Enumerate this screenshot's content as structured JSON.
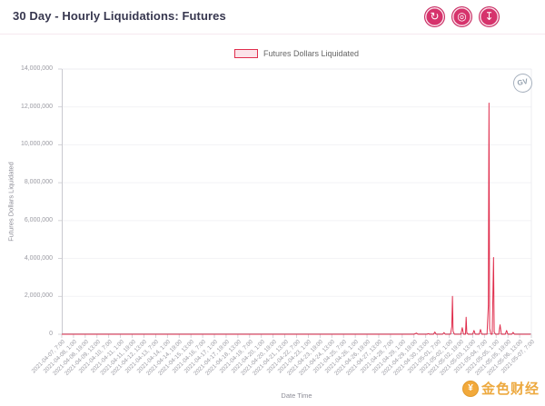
{
  "header": {
    "title": "30 Day - Hourly Liquidations: Futures",
    "buttons": [
      {
        "name": "history",
        "glyph": "↻"
      },
      {
        "name": "snapshot",
        "glyph": "◎"
      },
      {
        "name": "download",
        "glyph": "↧"
      }
    ]
  },
  "legend": {
    "label": "Futures Dollars Liquidated"
  },
  "logo_badge": "GV",
  "watermark": {
    "coin_glyph": "¥",
    "text": "金色财经"
  },
  "colors": {
    "accent_pink": "#d6336c",
    "line_red": "#e02e4d",
    "legend_fill": "#fbe3e9",
    "watermark_gold": "#eda93f"
  },
  "chart_data": {
    "type": "line",
    "title": "30 Day - Hourly Liquidations: Futures",
    "xlabel": "Date Time",
    "ylabel": "Futures Dollars Liquidated",
    "ylim": [
      0,
      14000000
    ],
    "grid": "horizontal-light",
    "legend_position": "top-center",
    "y_ticks": [
      "0",
      "2,000,000",
      "4,000,000",
      "6,000,000",
      "8,000,000",
      "10,000,000",
      "12,000,000",
      "14,000,000"
    ],
    "x_tick_labels": [
      "2021-04-07, 7:00",
      "2021-04-08, 1:00",
      "2021-04-08, 19:00",
      "2021-04-09, 13:00",
      "2021-04-10, 7:00",
      "2021-04-11, 1:00",
      "2021-04-11, 19:00",
      "2021-04-12, 13:00",
      "2021-04-13, 7:00",
      "2021-04-14, 1:00",
      "2021-04-14, 19:00",
      "2021-04-15, 13:00",
      "2021-04-16, 7:00",
      "2021-04-17, 1:00",
      "2021-04-17, 19:00",
      "2021-04-18, 13:00",
      "2021-04-19, 7:00",
      "2021-04-20, 1:00",
      "2021-04-20, 19:00",
      "2021-04-21, 13:00",
      "2021-04-22, 7:00",
      "2021-04-23, 1:00",
      "2021-04-23, 19:00",
      "2021-04-24, 13:00",
      "2021-04-25, 7:00",
      "2021-04-26, 1:00",
      "2021-04-26, 19:00",
      "2021-04-27, 13:00",
      "2021-04-28, 7:00",
      "2021-04-29, 1:00",
      "2021-04-29, 19:00",
      "2021-04-30, 13:00",
      "2021-05-01, 7:00",
      "2021-05-02, 1:00",
      "2021-05-02, 19:00",
      "2021-05-03, 13:00",
      "2021-05-04, 7:00",
      "2021-05-05, 1:00",
      "2021-05-05, 19:00",
      "2021-05-06, 13:00",
      "2021-05-07, 7:00"
    ],
    "x_hours_range": [
      0,
      719
    ],
    "series": [
      {
        "name": "Futures Dollars Liquidated",
        "color": "#e02e4d",
        "points": [
          [
            0,
            0
          ],
          [
            60,
            0
          ],
          [
            120,
            0
          ],
          [
            180,
            0
          ],
          [
            240,
            0
          ],
          [
            300,
            0
          ],
          [
            360,
            0
          ],
          [
            420,
            0
          ],
          [
            480,
            0
          ],
          [
            520,
            0
          ],
          [
            540,
            0
          ],
          [
            544,
            60000
          ],
          [
            546,
            0
          ],
          [
            560,
            0
          ],
          [
            562,
            30000
          ],
          [
            564,
            0
          ],
          [
            570,
            0
          ],
          [
            572,
            120000
          ],
          [
            574,
            0
          ],
          [
            584,
            0
          ],
          [
            586,
            90000
          ],
          [
            588,
            0
          ],
          [
            596,
            0
          ],
          [
            598,
            400000
          ],
          [
            599,
            2000000
          ],
          [
            600,
            150000
          ],
          [
            602,
            0
          ],
          [
            612,
            0
          ],
          [
            614,
            350000
          ],
          [
            616,
            0
          ],
          [
            619,
            0
          ],
          [
            620,
            900000
          ],
          [
            621,
            80000
          ],
          [
            623,
            0
          ],
          [
            630,
            0
          ],
          [
            632,
            200000
          ],
          [
            634,
            0
          ],
          [
            640,
            0
          ],
          [
            642,
            250000
          ],
          [
            644,
            0
          ],
          [
            652,
            0
          ],
          [
            654,
            1500000
          ],
          [
            655,
            12200000
          ],
          [
            656,
            300000
          ],
          [
            658,
            0
          ],
          [
            660,
            0
          ],
          [
            662,
            4050000
          ],
          [
            663,
            120000
          ],
          [
            665,
            0
          ],
          [
            670,
            0
          ],
          [
            672,
            500000
          ],
          [
            674,
            0
          ],
          [
            680,
            0
          ],
          [
            682,
            200000
          ],
          [
            684,
            0
          ],
          [
            690,
            0
          ],
          [
            692,
            100000
          ],
          [
            694,
            0
          ],
          [
            700,
            0
          ],
          [
            719,
            0
          ]
        ]
      }
    ]
  }
}
